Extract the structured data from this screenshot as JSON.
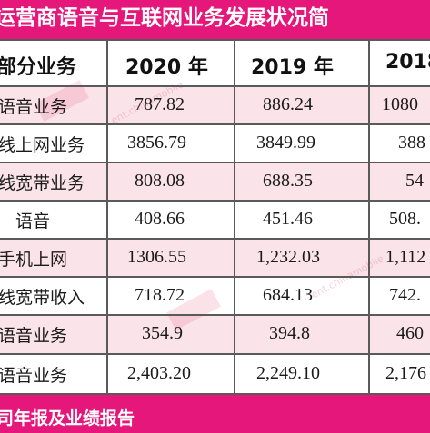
{
  "title": "运营商语音与互联网业务发展状况简",
  "table": {
    "headers": [
      "部分业务",
      "2020 年",
      "2019 年",
      "2018"
    ],
    "rows": [
      {
        "label": "语音业务",
        "v2020": "787.82",
        "v2019": "886.24",
        "v2018": "1080"
      },
      {
        "label": "线上网业务",
        "v2020": "3856.79",
        "v2019": "3849.99",
        "v2018": "388"
      },
      {
        "label": "线宽带业务",
        "v2020": "808.08",
        "v2019": "688.35",
        "v2018": "54"
      },
      {
        "label": "语音",
        "v2020": "408.66",
        "v2019": "451.46",
        "v2018": "508."
      },
      {
        "label": "手机上网",
        "v2020": "1306.55",
        "v2019": "1,232.03",
        "v2018": "1,112"
      },
      {
        "label": "线宽带收入",
        "v2020": "718.72",
        "v2019": "684.13",
        "v2018": "742."
      },
      {
        "label": "语音业务",
        "v2020": "354.9",
        "v2019": "394.8",
        "v2018": "460"
      },
      {
        "label": "语音业务",
        "v2020": "2,403.20",
        "v2019": "2,249.10",
        "v2018": "2,176"
      }
    ]
  },
  "footer": "司年报及业绩报告",
  "colors": {
    "accent_magenta": "#e5177a",
    "stripe_pink": "#fbe3ea",
    "grid_line": "#5a5a5a"
  }
}
